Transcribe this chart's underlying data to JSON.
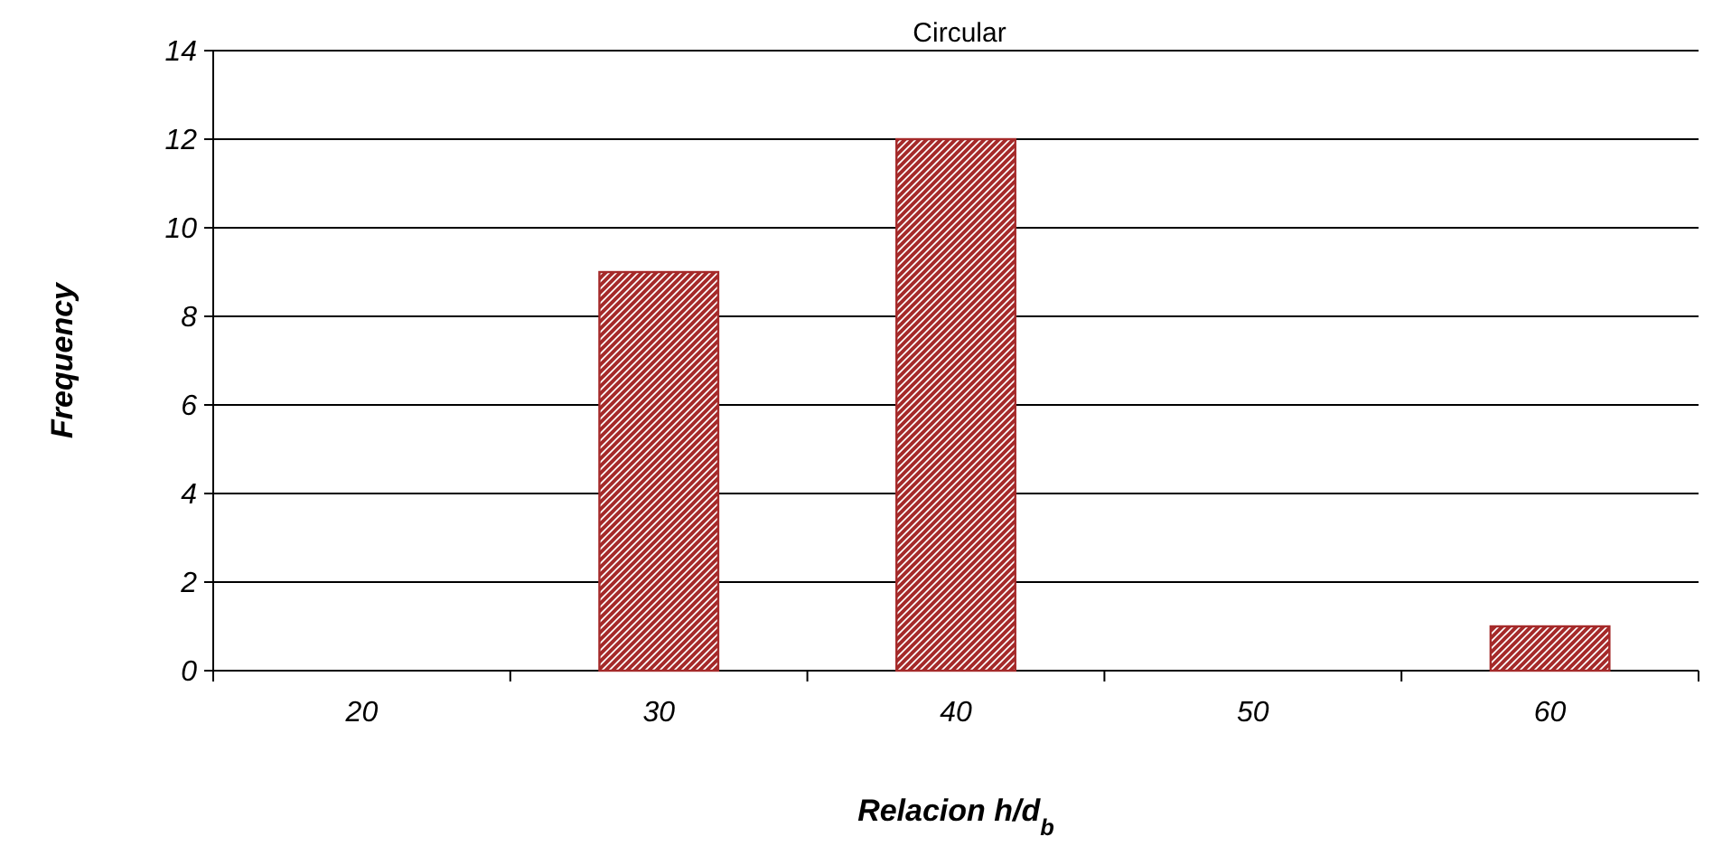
{
  "chart_data": {
    "type": "bar",
    "title": "Circular",
    "xlabel": "Relacion h/d$_{b}$",
    "ylabel": "Frequency",
    "categories": [
      "20",
      "30",
      "40",
      "50",
      "60"
    ],
    "values": [
      0,
      9,
      12,
      0,
      1
    ],
    "color": "#a52a2a",
    "ylim": [
      0,
      14
    ],
    "yticks": [
      0,
      2,
      4,
      6,
      8,
      10,
      12,
      14
    ],
    "grid": "y"
  }
}
